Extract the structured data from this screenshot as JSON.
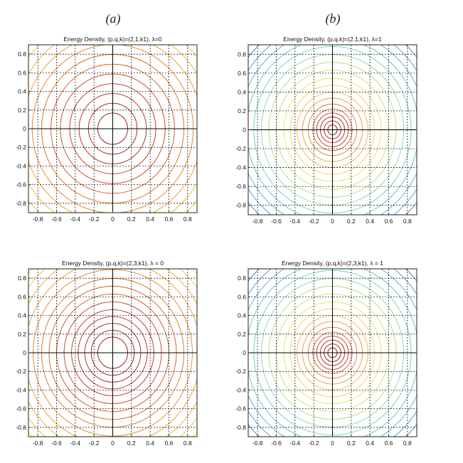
{
  "figure": {
    "panel_labels": [
      "(a)",
      "(b)"
    ]
  },
  "chart_data": [
    {
      "type": "contour",
      "panel": "(a)",
      "title": "Energy Density, (p,q,k)=(2,1,k1), λ=0",
      "xlim": [
        -0.9,
        0.9
      ],
      "ylim": [
        -0.9,
        0.9
      ],
      "xticks": [
        -0.8,
        -0.6,
        -0.4,
        -0.2,
        0,
        0.2,
        0.4,
        0.6,
        0.8
      ],
      "yticks": [
        -0.8,
        -0.6,
        -0.4,
        -0.2,
        0,
        0.2,
        0.4,
        0.6,
        0.8
      ],
      "xtick_labels": [
        "-0.8",
        "-0.6",
        "-0.4",
        "-0.2",
        "0",
        "0.2",
        "0.4",
        "0.6",
        "0.8"
      ],
      "ytick_labels": [
        "0.8",
        "0.6",
        "0.4",
        "0.2",
        "0",
        "-0.2",
        "-0.4",
        "-0.6",
        "-0.8"
      ],
      "grid": true,
      "colormap": "hot",
      "levels": [
        0.16,
        0.26,
        0.36,
        0.46,
        0.56,
        0.66,
        0.76,
        0.86,
        0.96,
        1.06,
        1.16,
        1.26
      ],
      "level_colors": [
        "#8a0f0f",
        "#a01414",
        "#b41d14",
        "#c42a12",
        "#cf3a10",
        "#d94f0e",
        "#e2650e",
        "#e97c10",
        "#ef9414",
        "#f3ab1a",
        "#f5c224",
        "#f6d632"
      ],
      "aspect": 1.05
    },
    {
      "type": "contour",
      "panel": "(b)",
      "title": "Energy Density, (p,q,k)=(2,1,k1), λ=1",
      "xlim": [
        -0.9,
        0.9
      ],
      "ylim": [
        -0.9,
        0.9
      ],
      "xticks": [
        -0.8,
        -0.6,
        -0.4,
        -0.2,
        0,
        0.2,
        0.4,
        0.6,
        0.8
      ],
      "yticks": [
        -0.8,
        -0.6,
        -0.4,
        -0.2,
        0,
        0.2,
        0.4,
        0.6,
        0.8
      ],
      "xtick_labels": [
        "-0.8",
        "-0.6",
        "-0.4",
        "-0.2",
        "0",
        "0.2",
        "0.4",
        "0.6",
        "0.8"
      ],
      "ytick_labels": [
        "0.8",
        "0.6",
        "0.4",
        "0.2",
        "0",
        "-0.2",
        "-0.4",
        "-0.6",
        "-0.8"
      ],
      "grid": true,
      "colormap": "jet",
      "levels": [
        0.05,
        0.09,
        0.13,
        0.17,
        0.21,
        0.26,
        0.32,
        0.38,
        0.45,
        0.52,
        0.6,
        0.68,
        0.76,
        0.84,
        0.92,
        1.0,
        1.08,
        1.16,
        1.24
      ],
      "level_colors": [
        "#7a0b0b",
        "#961010",
        "#b01a14",
        "#c8321a",
        "#d9581e",
        "#e47b26",
        "#ec9a2e",
        "#f2b834",
        "#f4d23c",
        "#e9e24a",
        "#c8e45a",
        "#a4e07a",
        "#7fd99a",
        "#5fd0b6",
        "#4cc3c8",
        "#45b0d0",
        "#4a96cc",
        "#4c78c0",
        "#4a5aa8"
      ],
      "aspect": 1.05
    },
    {
      "type": "contour",
      "panel": "(a)",
      "title": "Energy Density, (p,q,k)=(2,3,k1), λ = 0",
      "xlim": [
        -0.9,
        0.9
      ],
      "ylim": [
        -0.9,
        0.9
      ],
      "xticks": [
        -0.8,
        -0.6,
        -0.4,
        -0.2,
        0,
        0.2,
        0.4,
        0.6,
        0.8
      ],
      "yticks": [
        -0.8,
        -0.6,
        -0.4,
        -0.2,
        0,
        0.2,
        0.4,
        0.6,
        0.8
      ],
      "xtick_labels": [
        "-0.8",
        "-0.6",
        "-0.4",
        "-0.2",
        "0",
        "0.2",
        "0.4",
        "0.6",
        "0.8"
      ],
      "ytick_labels": [
        "0.8",
        "0.6",
        "0.4",
        "0.2",
        "0",
        "-0.2",
        "-0.4",
        "-0.6",
        "-0.8"
      ],
      "grid": true,
      "colormap": "hot",
      "levels": [
        0.16,
        0.23,
        0.3,
        0.37,
        0.44,
        0.52,
        0.6,
        0.68,
        0.76,
        0.85,
        0.94,
        1.03,
        1.12,
        1.21,
        1.3
      ],
      "level_colors": [
        "#8a0f0f",
        "#9a1212",
        "#aa1814",
        "#b82014",
        "#c42a12",
        "#cd3810",
        "#d6480e",
        "#de5a0e",
        "#e56d0f",
        "#eb8111",
        "#f09514",
        "#f3aa1a",
        "#f5be22",
        "#f6d02c",
        "#f7de36"
      ],
      "aspect": 1.05
    },
    {
      "type": "contour",
      "panel": "(b)",
      "title": "Energy Density, (p,q,k)=(2,3,k1), λ = 1",
      "xlim": [
        -0.9,
        0.9
      ],
      "ylim": [
        -0.9,
        0.9
      ],
      "xticks": [
        -0.8,
        -0.6,
        -0.4,
        -0.2,
        0,
        0.2,
        0.4,
        0.6,
        0.8
      ],
      "yticks": [
        -0.8,
        -0.6,
        -0.4,
        -0.2,
        0,
        0.2,
        0.4,
        0.6,
        0.8
      ],
      "xtick_labels": [
        "-0.8",
        "-0.6",
        "-0.4",
        "-0.2",
        "0",
        "0.2",
        "0.4",
        "0.6",
        "0.8"
      ],
      "ytick_labels": [
        "0.8",
        "0.6",
        "0.4",
        "0.2",
        "0",
        "-0.2",
        "-0.4",
        "-0.6",
        "-0.8"
      ],
      "grid": true,
      "colormap": "jet",
      "levels": [
        0.05,
        0.09,
        0.13,
        0.17,
        0.21,
        0.26,
        0.32,
        0.38,
        0.45,
        0.52,
        0.6,
        0.68,
        0.76,
        0.84,
        0.92,
        1.0,
        1.08,
        1.16,
        1.24
      ],
      "level_colors": [
        "#7a0b0b",
        "#961010",
        "#b01a14",
        "#c8321a",
        "#d9581e",
        "#e47b26",
        "#ec9a2e",
        "#f2b834",
        "#f4d23c",
        "#e9e24a",
        "#c8e45a",
        "#a4e07a",
        "#7fd99a",
        "#5fd0b6",
        "#4cc3c8",
        "#45b0d0",
        "#4a96cc",
        "#4c78c0",
        "#4a5aa8"
      ],
      "aspect": 1.05
    }
  ]
}
